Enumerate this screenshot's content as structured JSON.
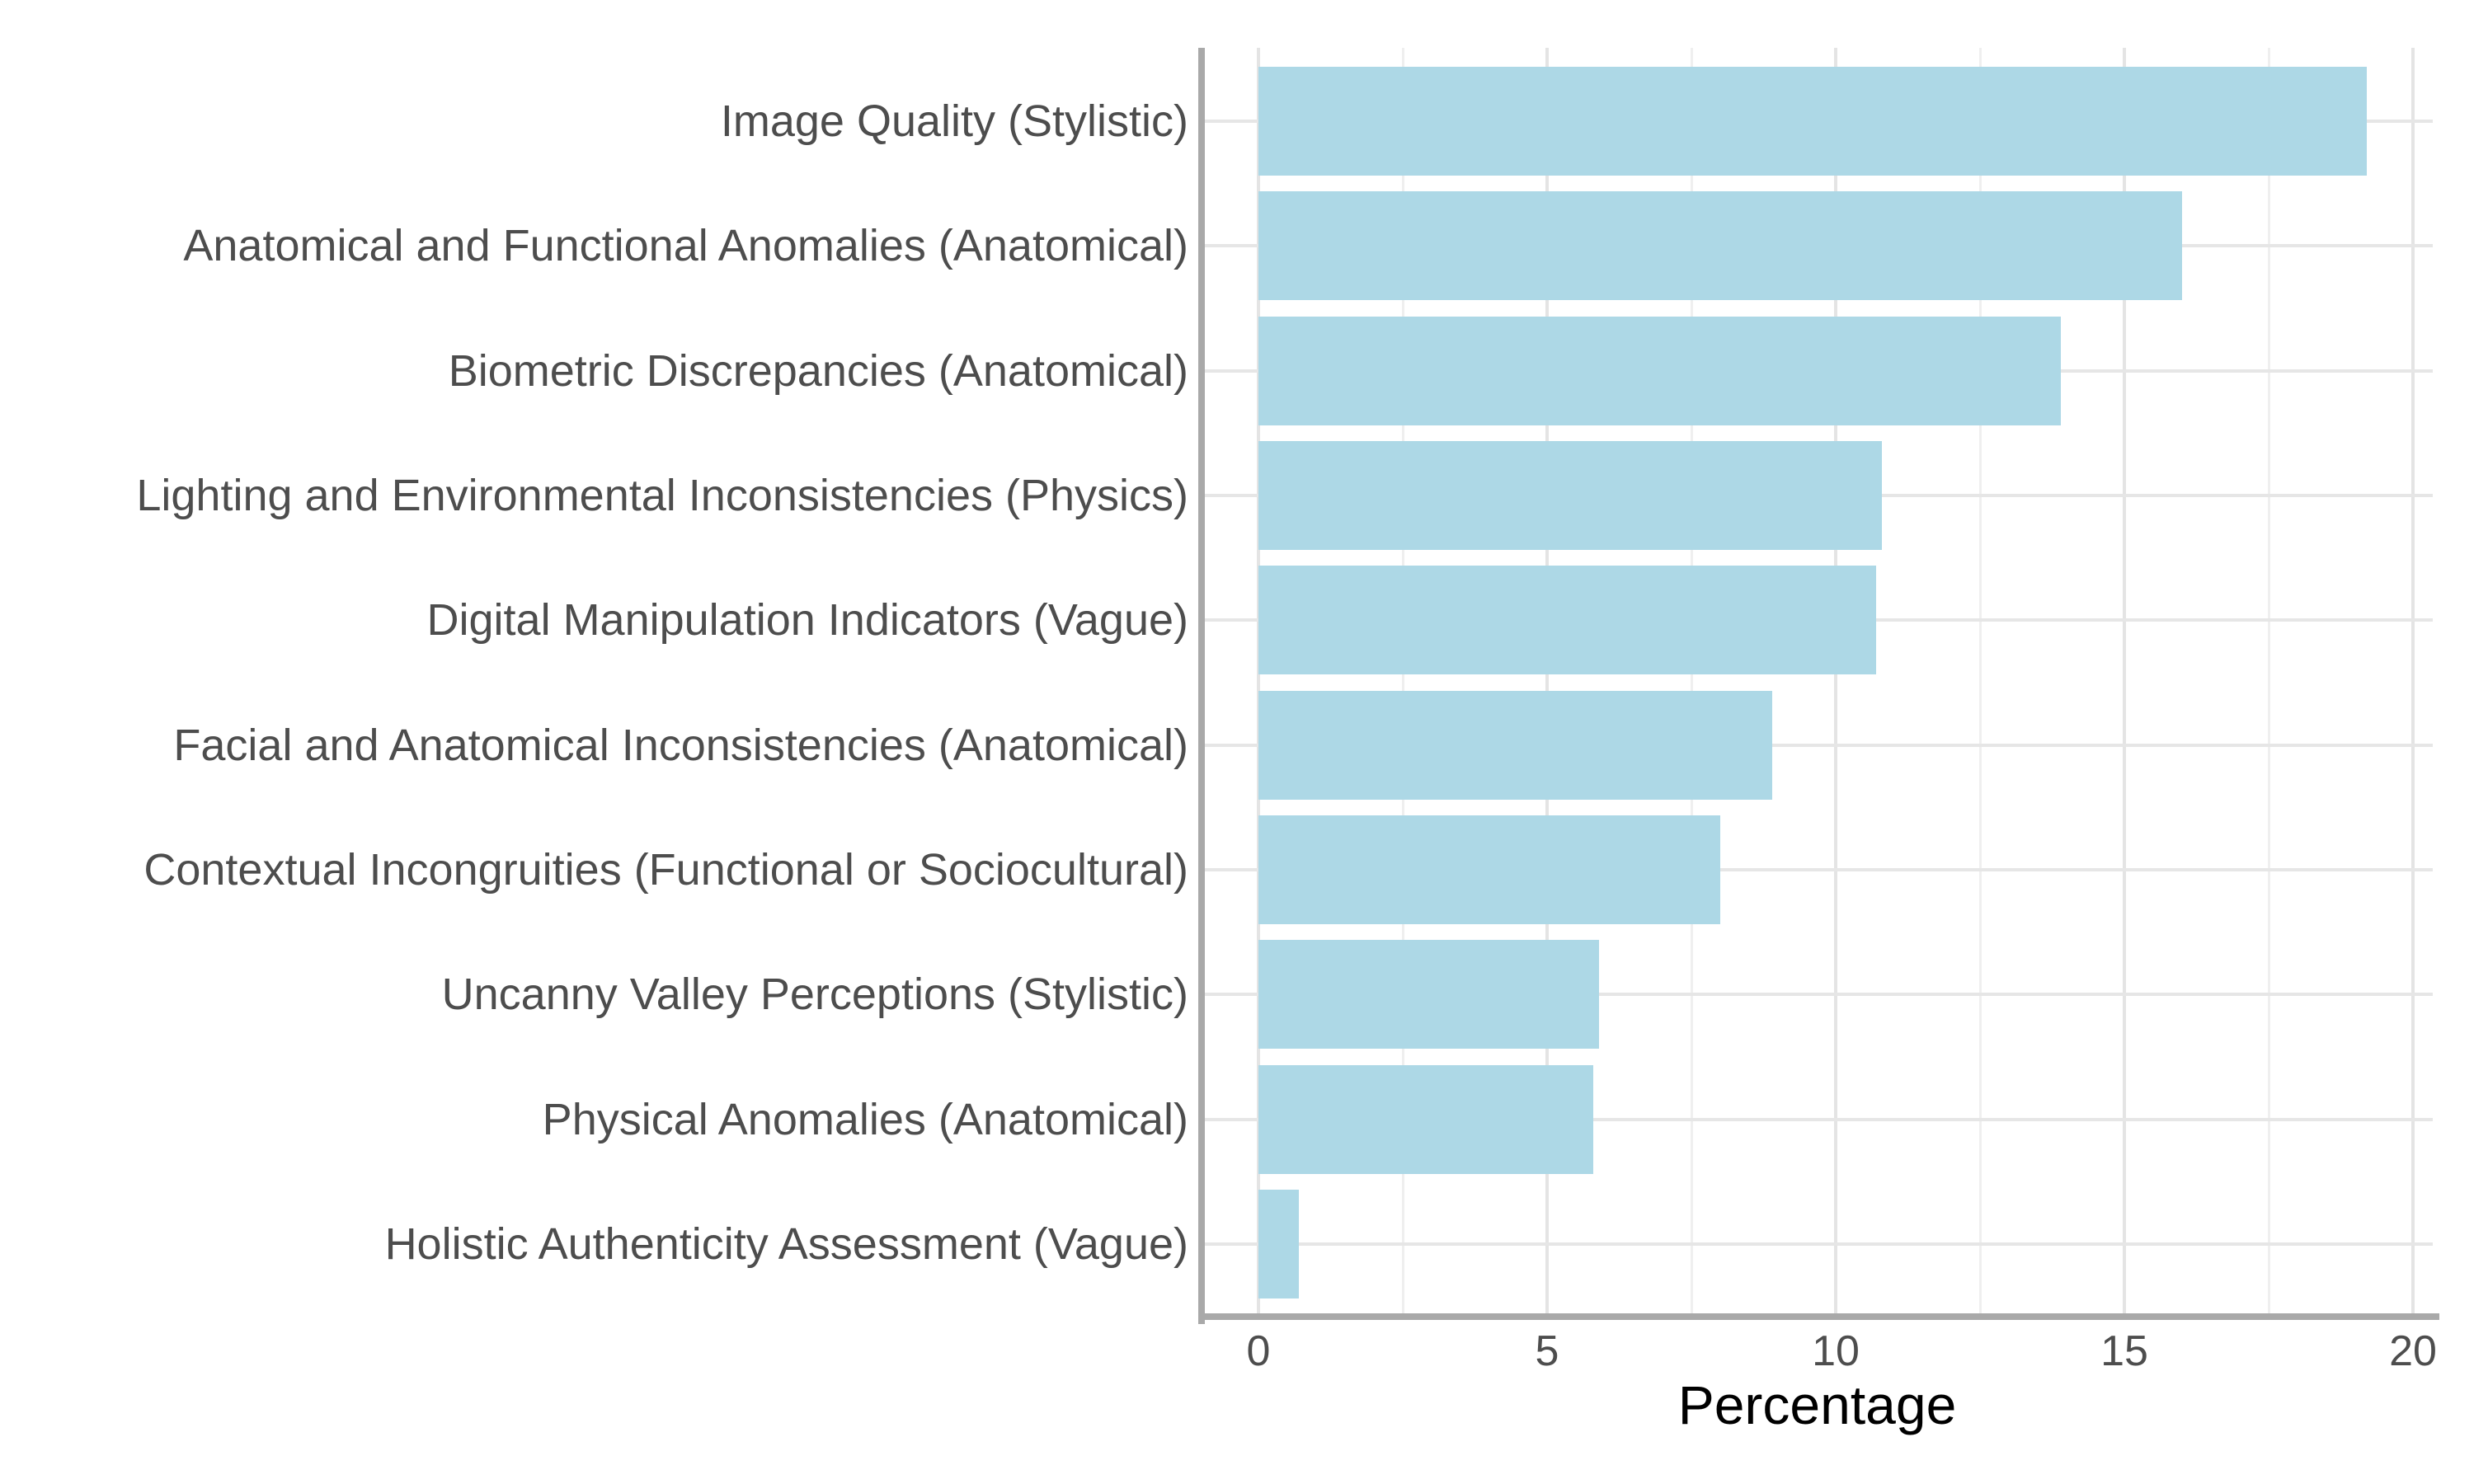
{
  "chart_data": {
    "type": "bar",
    "orientation": "horizontal",
    "title": "",
    "categories": [
      "Image Quality (Stylistic)",
      "Anatomical and Functional Anomalies (Anatomical)",
      "Biometric Discrepancies (Anatomical)",
      "Lighting and Environmental Inconsistencies (Physics)",
      "Digital Manipulation Indicators (Vague)",
      "Facial and Anatomical Inconsistencies (Anatomical)",
      "Contextual Incongruities (Functional or Sociocultural)",
      "Uncanny Valley Perceptions (Stylistic)",
      "Physical Anomalies (Anatomical)",
      "Holistic Authenticity Assessment (Vague)"
    ],
    "values": [
      19.2,
      16.0,
      13.9,
      10.8,
      10.7,
      8.9,
      8.0,
      5.9,
      5.8,
      0.7
    ],
    "xlabel": "Percentage",
    "ylabel": "",
    "xlim": [
      0,
      20
    ],
    "x_ticks": [
      0,
      5,
      10,
      15,
      20
    ],
    "x_minor_ticks": [
      2.5,
      7.5,
      12.5,
      17.5
    ],
    "grid": "major+minor vertical, per-category horizontal",
    "legend": "none",
    "bar_color": "#ADD8E6",
    "background_color": "#FFFFFF",
    "grid_major_color": "#E4E4E4",
    "grid_minor_color": "#EFEFEF",
    "axis_line_color": "#A9A9A9",
    "tick_label_color": "#4D4D4D",
    "axis_title_color": "#000000"
  }
}
